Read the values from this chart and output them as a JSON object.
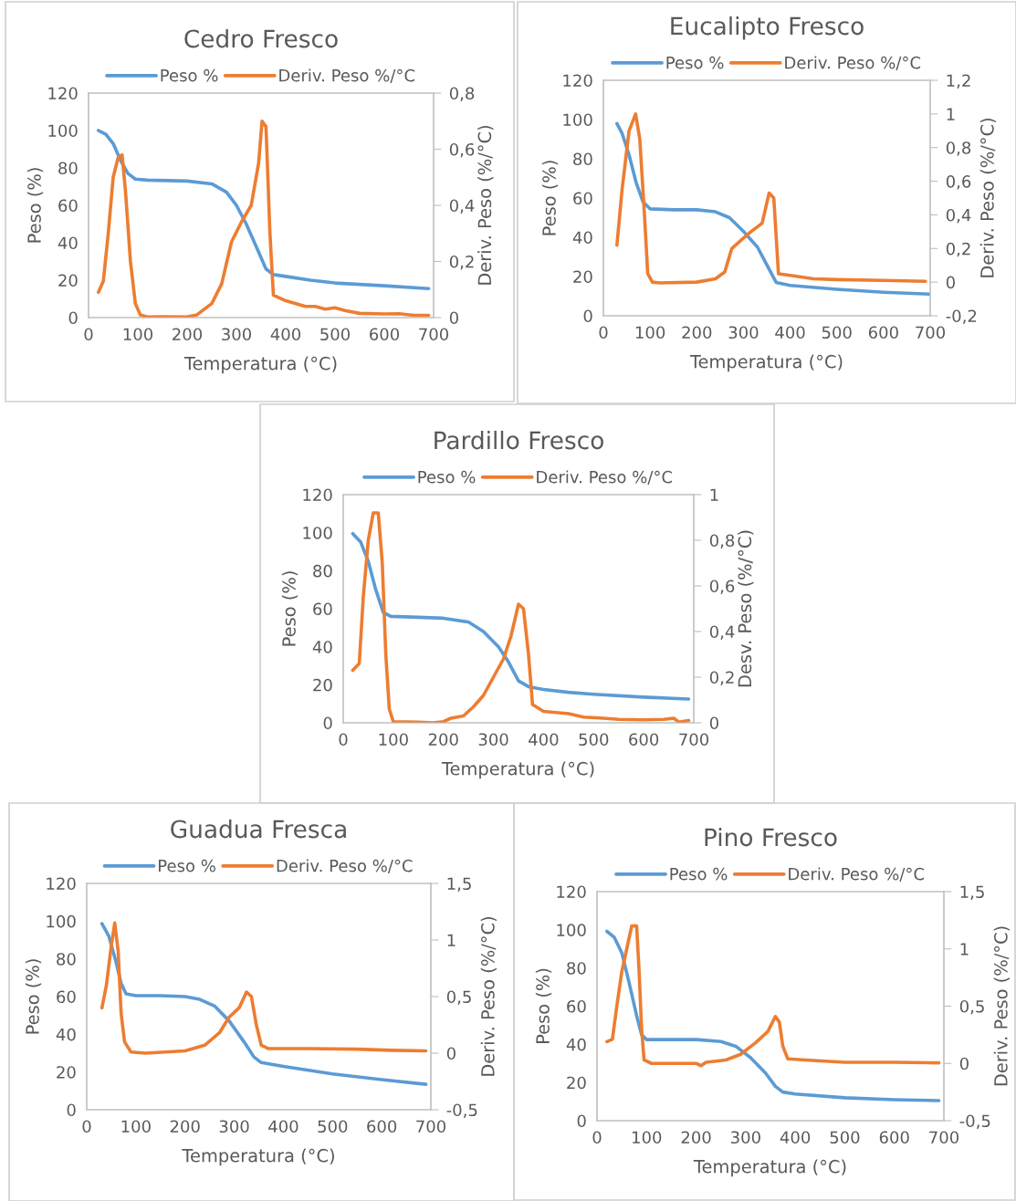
{
  "chart_data": [
    {
      "type": "line",
      "title": "Cedro Fresco",
      "xlabel": "Temperatura (°C)",
      "ylabel": "Peso (%)",
      "y2label": "Deriv. Peso (%/°C)",
      "legend": "top",
      "grid": false,
      "xlim": [
        0,
        700
      ],
      "xticks": [
        0,
        100,
        200,
        300,
        400,
        500,
        600,
        700
      ],
      "ylim": [
        0,
        120
      ],
      "yticks": [
        0,
        20,
        40,
        60,
        80,
        100,
        120
      ],
      "y2lim": [
        0,
        0.8
      ],
      "y2ticks": [
        0,
        {
          "value": 0.2,
          "label": "0,2"
        },
        {
          "value": 0.4,
          "label": "0,4"
        },
        {
          "value": 0.6,
          "label": "0,6"
        },
        {
          "value": 0.8,
          "label": "0,8"
        }
      ],
      "series": [
        {
          "name": "Peso %",
          "color": "#5b9bd5",
          "x": [
            20,
            35,
            50,
            65,
            80,
            95,
            120,
            200,
            250,
            280,
            300,
            320,
            340,
            360,
            375,
            400,
            450,
            500,
            600,
            690
          ],
          "values": [
            100,
            98,
            93,
            84,
            77,
            74,
            73.5,
            73,
            71.5,
            67,
            60,
            50,
            38,
            26,
            23,
            22,
            20,
            18.5,
            17,
            15.5
          ]
        },
        {
          "name": "Deriv. Peso %/°C",
          "color": "#ed7d31",
          "axis": "y2",
          "x": [
            20,
            30,
            40,
            50,
            60,
            68,
            75,
            85,
            95,
            105,
            120,
            150,
            200,
            220,
            250,
            270,
            290,
            310,
            330,
            345,
            352,
            360,
            368,
            375,
            400,
            440,
            460,
            480,
            500,
            520,
            550,
            600,
            630,
            660,
            690
          ],
          "values": [
            0.09,
            0.13,
            0.3,
            0.5,
            0.57,
            0.58,
            0.45,
            0.2,
            0.05,
            0.01,
            0.002,
            0.003,
            0.002,
            0.01,
            0.05,
            0.12,
            0.27,
            0.34,
            0.4,
            0.55,
            0.7,
            0.68,
            0.3,
            0.08,
            0.06,
            0.04,
            0.04,
            0.03,
            0.035,
            0.025,
            0.015,
            0.013,
            0.014,
            0.008,
            0.008
          ]
        }
      ]
    },
    {
      "type": "line",
      "title": "Eucalipto Fresco",
      "xlabel": "Temperatura (°C)",
      "ylabel": "Peso (%)",
      "y2label": "Deriv. Peso (%/°C)",
      "legend": "top",
      "grid": false,
      "xlim": [
        0,
        700
      ],
      "xticks": [
        0,
        100,
        200,
        300,
        400,
        500,
        600,
        700
      ],
      "ylim": [
        0,
        120
      ],
      "yticks": [
        0,
        20,
        40,
        60,
        80,
        100,
        120
      ],
      "y2lim": [
        -0.2,
        1.2
      ],
      "y2ticks": [
        {
          "value": -0.2,
          "label": "-0,2"
        },
        0,
        {
          "value": 0.2,
          "label": "0,2"
        },
        {
          "value": 0.4,
          "label": "0,4"
        },
        {
          "value": 0.6,
          "label": "0,6"
        },
        {
          "value": 0.8,
          "label": "0,8"
        },
        1,
        {
          "value": 1.2,
          "label": "1,2"
        }
      ],
      "series": [
        {
          "name": "Peso %",
          "color": "#5b9bd5",
          "x": [
            29,
            40,
            55,
            70,
            85,
            100,
            150,
            200,
            240,
            270,
            300,
            330,
            350,
            370,
            400,
            500,
            600,
            700
          ],
          "values": [
            98,
            93,
            82,
            68,
            58,
            54.5,
            54,
            54,
            53,
            50,
            43,
            35,
            26,
            17,
            15.5,
            13.5,
            12,
            11
          ]
        },
        {
          "name": "Deriv. Peso %/°C",
          "color": "#ed7d31",
          "axis": "y2",
          "x": [
            29,
            40,
            55,
            69,
            78,
            88,
            95,
            105,
            120,
            200,
            240,
            260,
            275,
            295,
            316,
            340,
            355,
            365,
            375,
            400,
            450,
            500,
            600,
            690
          ],
          "values": [
            0.22,
            0.55,
            0.9,
            1.0,
            0.85,
            0.4,
            0.05,
            0.0,
            -0.005,
            0.0,
            0.02,
            0.06,
            0.2,
            0.25,
            0.3,
            0.35,
            0.53,
            0.5,
            0.05,
            0.04,
            0.02,
            0.015,
            0.01,
            0.005
          ]
        }
      ]
    },
    {
      "type": "line",
      "title": "Pardillo Fresco",
      "xlabel": "Temperatura (°C)",
      "ylabel": "Peso (%)",
      "y2label": "Desv. Peso (%/°C)",
      "legend": "top",
      "grid": false,
      "xlim": [
        0,
        700
      ],
      "xticks": [
        0,
        100,
        200,
        300,
        400,
        500,
        600,
        700
      ],
      "ylim": [
        0,
        120
      ],
      "yticks": [
        0,
        20,
        40,
        60,
        80,
        100,
        120
      ],
      "y2lim": [
        0,
        1
      ],
      "y2ticks": [
        0,
        {
          "value": 0.2,
          "label": "0,2"
        },
        {
          "value": 0.4,
          "label": "0,4"
        },
        {
          "value": 0.6,
          "label": "0,6"
        },
        {
          "value": 0.8,
          "label": "0,8"
        },
        1
      ],
      "series": [
        {
          "name": "Peso %",
          "color": "#5b9bd5",
          "x": [
            19,
            35,
            50,
            65,
            80,
            95,
            150,
            200,
            250,
            280,
            310,
            330,
            350,
            370,
            400,
            450,
            500,
            600,
            690
          ],
          "values": [
            99.5,
            95,
            85,
            70,
            58,
            56,
            55.5,
            55,
            53,
            48,
            40,
            32,
            22,
            19,
            17.5,
            16,
            15,
            13.5,
            12.5
          ]
        },
        {
          "name": "Deriv. Peso %/°C",
          "color": "#ed7d31",
          "axis": "y2",
          "x": [
            19,
            32,
            40,
            50,
            60,
            70,
            78,
            85,
            92,
            100,
            150,
            180,
            200,
            215,
            240,
            260,
            280,
            300,
            320,
            335,
            350,
            360,
            370,
            378,
            400,
            450,
            480,
            520,
            550,
            600,
            640,
            660,
            670,
            690
          ],
          "values": [
            0.23,
            0.26,
            0.55,
            0.8,
            0.92,
            0.92,
            0.7,
            0.3,
            0.06,
            0.005,
            0.003,
            0.0,
            0.005,
            0.02,
            0.03,
            0.07,
            0.12,
            0.2,
            0.28,
            0.38,
            0.52,
            0.5,
            0.3,
            0.08,
            0.05,
            0.04,
            0.025,
            0.02,
            0.015,
            0.013,
            0.015,
            0.02,
            0.003,
            0.01
          ]
        }
      ]
    },
    {
      "type": "line",
      "title": "Guadua Fresca",
      "xlabel": "Temperatura (°C)",
      "ylabel": "Peso (%)",
      "y2label": "Deriv. Peso (%/°C)",
      "legend": "top",
      "grid": false,
      "xlim": [
        0,
        700
      ],
      "xticks": [
        0,
        100,
        200,
        300,
        400,
        500,
        600,
        700
      ],
      "ylim": [
        0,
        120
      ],
      "yticks": [
        0,
        20,
        40,
        60,
        80,
        100,
        120
      ],
      "y2lim": [
        -0.5,
        1.5
      ],
      "y2ticks": [
        {
          "value": -0.5,
          "label": "-0,5"
        },
        0,
        {
          "value": 0.5,
          "label": "0,5"
        },
        1,
        {
          "value": 1.5,
          "label": "1,5"
        }
      ],
      "series": [
        {
          "name": "Peso %",
          "color": "#5b9bd5",
          "x": [
            31,
            45,
            60,
            70,
            80,
            100,
            150,
            200,
            230,
            260,
            290,
            320,
            340,
            355,
            400,
            500,
            600,
            690
          ],
          "values": [
            98.7,
            92,
            78,
            67,
            61.5,
            60.5,
            60.5,
            60,
            58.5,
            55,
            47,
            36,
            28,
            25,
            23,
            19,
            16,
            13.5
          ]
        },
        {
          "name": "Deriv. Peso %/°C",
          "color": "#ed7d31",
          "axis": "y2",
          "x": [
            31,
            40,
            50,
            57,
            64,
            70,
            77,
            90,
            120,
            200,
            240,
            270,
            290,
            310,
            325,
            335,
            345,
            355,
            370,
            450,
            550,
            620,
            690
          ],
          "values": [
            0.4,
            0.6,
            0.95,
            1.15,
            0.9,
            0.35,
            0.1,
            0.01,
            0.0,
            0.02,
            0.07,
            0.18,
            0.32,
            0.4,
            0.54,
            0.5,
            0.25,
            0.07,
            0.04,
            0.04,
            0.035,
            0.025,
            0.02
          ]
        }
      ]
    },
    {
      "type": "line",
      "title": "Pino Fresco",
      "xlabel": "Temperatura (°C)",
      "ylabel": "Peso (%)",
      "y2label": "Deriv. Peso (%/°C)",
      "legend": "top",
      "grid": false,
      "xlim": [
        0,
        700
      ],
      "xticks": [
        0,
        100,
        200,
        300,
        400,
        500,
        600,
        700
      ],
      "ylim": [
        0,
        120
      ],
      "yticks": [
        0,
        20,
        40,
        60,
        80,
        100,
        120
      ],
      "y2lim": [
        -0.5,
        1.5
      ],
      "y2ticks": [
        {
          "value": -0.5,
          "label": "-0,5"
        },
        0,
        {
          "value": 0.5,
          "label": "0,5"
        },
        1,
        {
          "value": 1.5,
          "label": "1,5"
        }
      ],
      "series": [
        {
          "name": "Peso %",
          "color": "#5b9bd5",
          "x": [
            20,
            35,
            50,
            65,
            80,
            90,
            100,
            150,
            200,
            250,
            280,
            310,
            340,
            360,
            375,
            400,
            500,
            600,
            690
          ],
          "values": [
            99.2,
            96,
            88,
            72,
            55,
            45,
            42.5,
            42.5,
            42.5,
            41.5,
            39,
            33,
            25,
            18,
            15,
            14,
            12,
            11,
            10.5
          ]
        },
        {
          "name": "Deriv. Peso %/°C",
          "color": "#ed7d31",
          "axis": "y2",
          "x": [
            20,
            31,
            40,
            50,
            60,
            70,
            80,
            85,
            90,
            95,
            110,
            200,
            210,
            220,
            260,
            290,
            320,
            345,
            360,
            368,
            375,
            385,
            420,
            500,
            600,
            690
          ],
          "values": [
            0.19,
            0.21,
            0.5,
            0.8,
            1.0,
            1.2,
            1.2,
            0.8,
            0.3,
            0.03,
            0.0,
            0.0,
            -0.02,
            0.01,
            0.03,
            0.08,
            0.18,
            0.28,
            0.41,
            0.36,
            0.15,
            0.04,
            0.03,
            0.01,
            0.01,
            0.005
          ]
        }
      ]
    }
  ]
}
